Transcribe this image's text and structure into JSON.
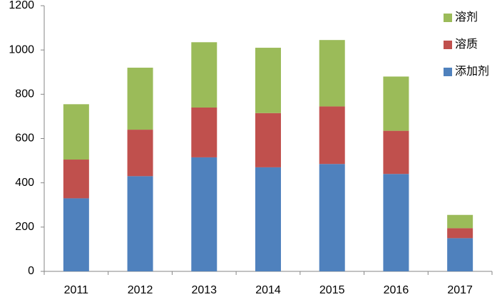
{
  "chart_data": {
    "type": "stacked_bar",
    "categories": [
      "2011",
      "2012",
      "2013",
      "2014",
      "2015",
      "2016",
      "2017"
    ],
    "series": [
      {
        "name": "添加剂",
        "color": "#4f81bd",
        "values": [
          330,
          430,
          515,
          470,
          485,
          440,
          150
        ]
      },
      {
        "name": "溶质",
        "color": "#c0504d",
        "values": [
          175,
          210,
          225,
          245,
          260,
          195,
          45
        ]
      },
      {
        "name": "溶剂",
        "color": "#9bbb59",
        "values": [
          250,
          280,
          295,
          295,
          300,
          245,
          60
        ]
      }
    ],
    "ylim": [
      0,
      1200
    ],
    "yticks": [
      0,
      200,
      400,
      600,
      800,
      1000,
      1200
    ],
    "grid": false,
    "legend": "top-right"
  }
}
